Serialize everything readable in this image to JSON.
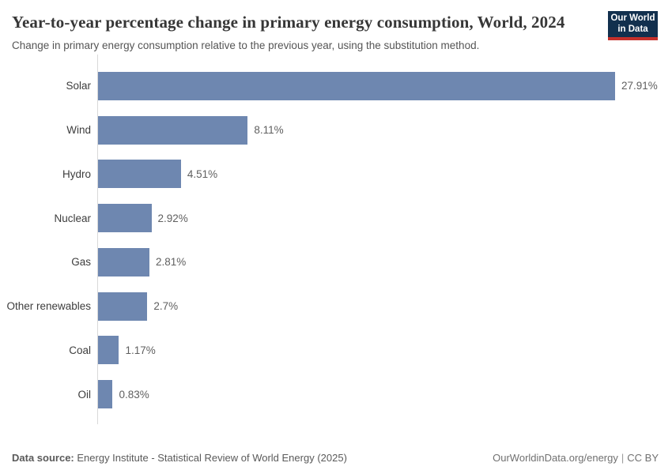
{
  "header": {
    "title": "Year-to-year percentage change in primary energy consumption, World, 2024",
    "subtitle": "Change in primary energy consumption relative to the previous year, using the substitution method.",
    "logo": {
      "line1": "Our World",
      "line2": "in Data"
    }
  },
  "chart_data": {
    "type": "bar",
    "orientation": "horizontal",
    "title": "Year-to-year percentage change in primary energy consumption, World, 2024",
    "categories": [
      "Solar",
      "Wind",
      "Hydro",
      "Nuclear",
      "Gas",
      "Other renewables",
      "Coal",
      "Oil"
    ],
    "values": [
      27.91,
      8.11,
      4.51,
      2.92,
      2.81,
      2.7,
      1.17,
      0.83
    ],
    "value_labels": [
      "27.91%",
      "8.11%",
      "4.51%",
      "2.92%",
      "2.81%",
      "2.7%",
      "1.17%",
      "0.83%"
    ],
    "xlabel": "",
    "ylabel": "",
    "xlim": [
      0,
      27.91
    ],
    "unit": "%",
    "grid": false,
    "legend": false,
    "bar_color": "#6e87b0",
    "axis_line_color": "#d9d9d9"
  },
  "footer": {
    "source_label": "Data source:",
    "source_text": "Energy Institute - Statistical Review of World Energy (2025)",
    "url": "OurWorldinData.org/energy",
    "separator": "|",
    "license": "CC BY"
  }
}
